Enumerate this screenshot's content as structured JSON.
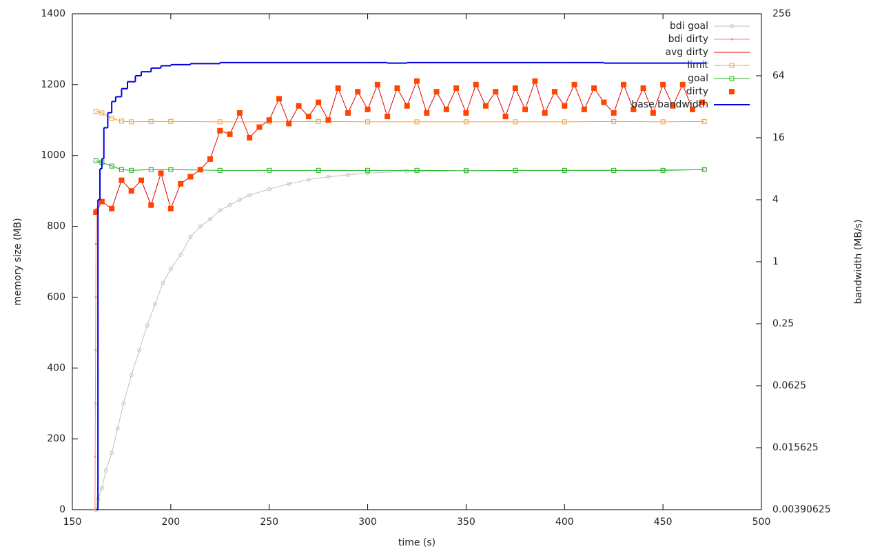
{
  "chart_data": {
    "type": "line",
    "xlabel": "time (s)",
    "ylabel": "memory size (MB)",
    "y2label": "bandwidth (MB/s)",
    "xlim": [
      150,
      500
    ],
    "xticks": [
      150,
      200,
      250,
      300,
      350,
      400,
      450,
      500
    ],
    "ylim": [
      0,
      1400
    ],
    "yticks": [
      0,
      200,
      400,
      600,
      800,
      1000,
      1200,
      1400
    ],
    "y2lim": [
      0.00390625,
      256
    ],
    "y2scale": "log",
    "y2ticks": [
      0.00390625,
      0.015625,
      0.0625,
      0.25,
      1,
      4,
      16,
      64,
      256
    ],
    "grid": false,
    "legend": "top-right",
    "series": [
      {
        "name": "bdi goal",
        "color": "#c0c0c0",
        "style": "linespoints",
        "marker": "circle",
        "x": [
          162,
          163,
          165,
          167,
          170,
          173,
          176,
          180,
          184,
          188,
          192,
          196,
          200,
          205,
          210,
          215,
          220,
          225,
          230,
          235,
          240,
          250,
          260,
          270,
          280,
          290,
          300,
          320,
          350,
          400,
          450,
          471
        ],
        "values": [
          0,
          30,
          60,
          110,
          160,
          230,
          300,
          380,
          450,
          520,
          580,
          640,
          680,
          720,
          770,
          800,
          820,
          845,
          860,
          875,
          888,
          905,
          920,
          932,
          940,
          945,
          950,
          955,
          957,
          958,
          959,
          960
        ]
      },
      {
        "name": "bdi dirty",
        "color": "#ff7f7f",
        "style": "linespoints",
        "marker": "dot",
        "x": [
          161.5,
          161.6,
          161.7,
          161.8,
          161.9,
          162,
          162.2
        ],
        "values": [
          0,
          150,
          300,
          450,
          600,
          750,
          850
        ]
      },
      {
        "name": "avg dirty",
        "color": "#e00000",
        "style": "line",
        "marker": "none",
        "x": [
          162,
          165,
          170,
          175,
          180,
          185,
          190,
          195,
          200,
          205,
          210,
          215,
          220,
          225,
          230,
          235,
          240,
          245,
          250,
          255,
          260,
          265,
          270,
          275,
          280,
          285,
          290,
          295,
          300,
          305,
          310,
          315,
          320,
          325,
          330,
          335,
          340,
          345,
          350,
          355,
          360,
          365,
          370,
          375,
          380,
          385,
          390,
          395,
          400,
          405,
          410,
          415,
          420,
          425,
          430,
          435,
          440,
          445,
          450,
          455,
          460,
          465,
          470
        ],
        "values": [
          840,
          870,
          850,
          930,
          900,
          930,
          860,
          950,
          850,
          920,
          940,
          960,
          990,
          1070,
          1060,
          1120,
          1050,
          1080,
          1100,
          1160,
          1090,
          1140,
          1110,
          1150,
          1100,
          1190,
          1120,
          1180,
          1130,
          1200,
          1110,
          1190,
          1140,
          1210,
          1120,
          1180,
          1130,
          1190,
          1120,
          1200,
          1140,
          1180,
          1110,
          1190,
          1130,
          1210,
          1120,
          1180,
          1140,
          1200,
          1130,
          1190,
          1150,
          1120,
          1200,
          1130,
          1190,
          1120,
          1200,
          1140,
          1200,
          1130,
          1150
        ]
      },
      {
        "name": "limit",
        "color": "#f0a030",
        "style": "linespoints",
        "marker": "square-open",
        "x": [
          162,
          165,
          170,
          175,
          180,
          190,
          200,
          225,
          250,
          275,
          300,
          325,
          350,
          375,
          400,
          425,
          450,
          471
        ],
        "values": [
          1125,
          1120,
          1105,
          1097,
          1095,
          1096,
          1096,
          1095,
          1095,
          1096,
          1095,
          1095,
          1095,
          1095,
          1095,
          1096,
          1095,
          1096
        ]
      },
      {
        "name": "goal",
        "color": "#20b020",
        "style": "linespoints",
        "marker": "square-open",
        "x": [
          162,
          165,
          170,
          175,
          180,
          190,
          200,
          225,
          250,
          275,
          300,
          325,
          350,
          375,
          400,
          425,
          450,
          471
        ],
        "values": [
          985,
          980,
          970,
          960,
          958,
          960,
          960,
          958,
          958,
          958,
          958,
          958,
          957,
          958,
          958,
          958,
          958,
          960
        ]
      },
      {
        "name": "dirty",
        "color": "#ff4500",
        "style": "points",
        "marker": "square-filled",
        "x": [
          162,
          165,
          170,
          175,
          180,
          185,
          190,
          195,
          200,
          205,
          210,
          215,
          220,
          225,
          230,
          235,
          240,
          245,
          250,
          255,
          260,
          265,
          270,
          275,
          280,
          285,
          290,
          295,
          300,
          305,
          310,
          315,
          320,
          325,
          330,
          335,
          340,
          345,
          350,
          355,
          360,
          365,
          370,
          375,
          380,
          385,
          390,
          395,
          400,
          405,
          410,
          415,
          420,
          425,
          430,
          435,
          440,
          445,
          450,
          455,
          460,
          465,
          470
        ],
        "values": [
          840,
          870,
          850,
          930,
          900,
          930,
          860,
          950,
          850,
          920,
          940,
          960,
          990,
          1070,
          1060,
          1120,
          1050,
          1080,
          1100,
          1160,
          1090,
          1140,
          1110,
          1150,
          1100,
          1190,
          1120,
          1180,
          1130,
          1200,
          1110,
          1190,
          1140,
          1210,
          1120,
          1180,
          1130,
          1190,
          1120,
          1200,
          1140,
          1180,
          1110,
          1190,
          1130,
          1210,
          1120,
          1180,
          1140,
          1200,
          1130,
          1190,
          1150,
          1120,
          1200,
          1130,
          1190,
          1120,
          1200,
          1140,
          1200,
          1130,
          1150
        ]
      },
      {
        "name": "base bandwidth",
        "color": "#0000e0",
        "style": "steps",
        "marker": "none",
        "axis": "y2",
        "x": [
          162,
          163,
          164,
          165,
          166,
          168,
          170,
          172,
          175,
          178,
          182,
          185,
          190,
          195,
          200,
          210,
          225,
          300,
          310,
          320,
          400,
          420,
          472
        ],
        "values": [
          0.00390625,
          4,
          8,
          10,
          20,
          28,
          36,
          40,
          48,
          56,
          64,
          70,
          76,
          80,
          82,
          84,
          86,
          86,
          85,
          86,
          86,
          85,
          85
        ]
      }
    ]
  }
}
